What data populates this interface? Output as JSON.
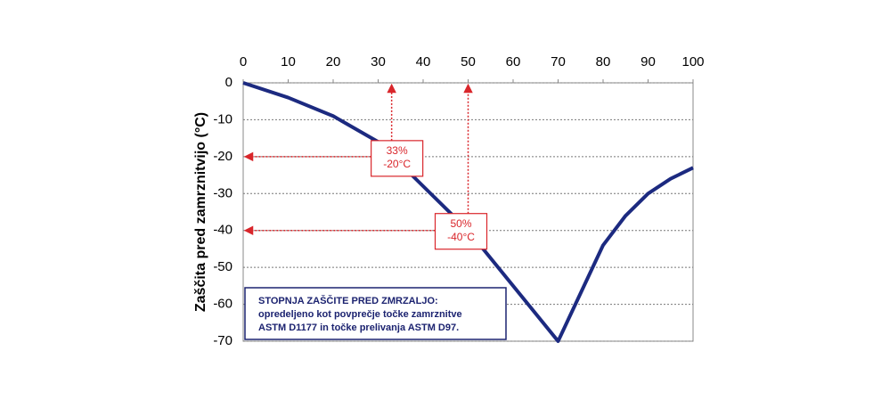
{
  "chart_data": {
    "type": "line",
    "y_label": "Zaščita pred zamrznitvijo (°C)",
    "x": [
      0,
      10,
      20,
      30,
      40,
      50,
      60,
      70,
      80,
      85,
      90,
      95,
      100
    ],
    "series": [
      {
        "color": "#1c2a80",
        "values": [
          0,
          -4,
          -9,
          -16,
          -28,
          -40,
          -55,
          -70,
          -44,
          -36,
          -30,
          -26,
          -23
        ]
      }
    ],
    "xlim": [
      0,
      100
    ],
    "xticks": [
      0,
      10,
      20,
      30,
      40,
      50,
      60,
      70,
      80,
      90,
      100
    ],
    "ylim": [
      -70,
      0
    ],
    "yticks": [
      0,
      -10,
      -20,
      -30,
      -40,
      -50,
      -60,
      -70
    ],
    "grid": true,
    "annotations": [
      {
        "x": 33,
        "y": -20,
        "lines": [
          "33%",
          "-20°C"
        ],
        "color": "#d9262b"
      },
      {
        "x": 50,
        "y": -40,
        "lines": [
          "50%",
          "-40°C"
        ],
        "color": "#d9262b"
      }
    ],
    "note": [
      "STOPNJA ZAŠČITE PRED ZMRZALJO:",
      "opredeljeno kot povprečje točke zamrznitve",
      "ASTM D1177 in točke prelivanja ASTM D97."
    ]
  }
}
